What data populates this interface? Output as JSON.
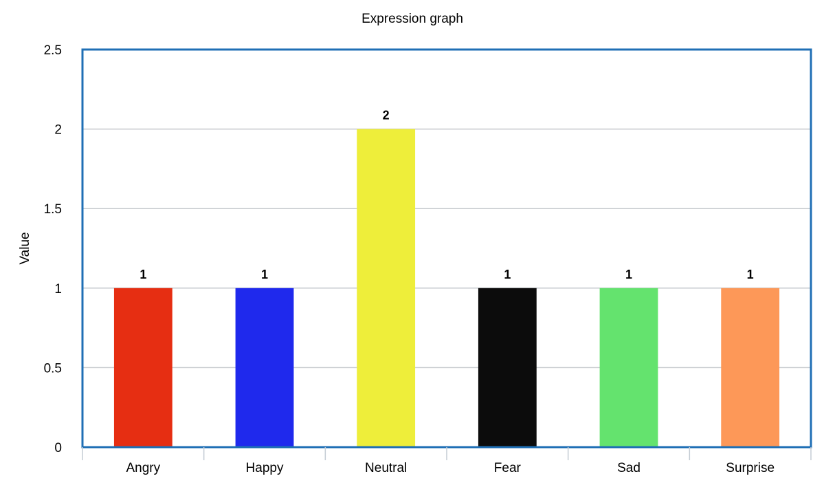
{
  "chart_data": {
    "type": "bar",
    "title": "Expression graph",
    "xlabel": "",
    "ylabel": "Value",
    "categories": [
      "Angry",
      "Happy",
      "Neutral",
      "Fear",
      "Sad",
      "Surprise"
    ],
    "values": [
      1,
      1,
      2,
      1,
      1,
      1
    ],
    "data_labels": [
      "1",
      "1",
      "2",
      "1",
      "1",
      "1"
    ],
    "colors": [
      "#e62e12",
      "#1f29ed",
      "#eeee3a",
      "#0c0c0c",
      "#64e36e",
      "#fd9858"
    ],
    "ylim": [
      0,
      2.5
    ],
    "yticks": [
      0,
      0.5,
      1,
      1.5,
      2,
      2.5
    ],
    "ytick_labels": [
      "0",
      "0.5",
      "1",
      "1.5",
      "2",
      "2.5"
    ],
    "grid": true,
    "legend": "none",
    "frame_color": "#1f6fb5",
    "grid_color": "#c4c8cc"
  }
}
